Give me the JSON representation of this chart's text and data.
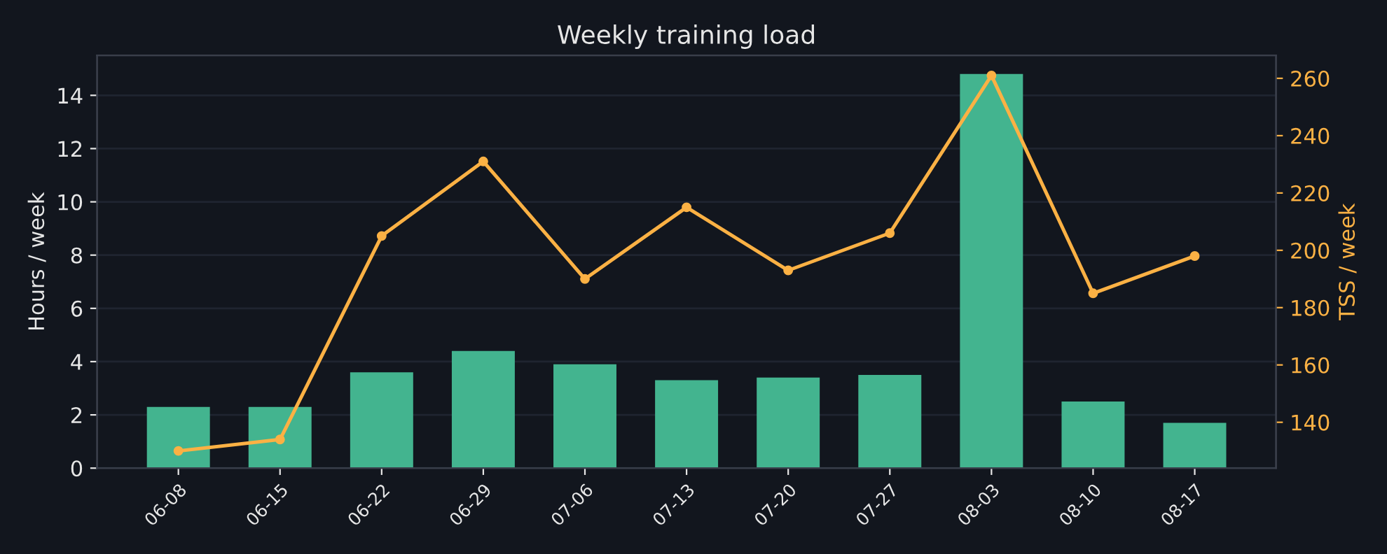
{
  "chart_data": {
    "type": "bar",
    "title": "Weekly training load",
    "ylabel": "Hours / week",
    "y2label": "TSS / week",
    "categories": [
      "06-08",
      "06-15",
      "06-22",
      "06-29",
      "07-06",
      "07-13",
      "07-20",
      "07-27",
      "08-03",
      "08-10",
      "08-17"
    ],
    "series": [
      {
        "color": "#43b48f",
        "values": [
          2.3,
          2.3,
          3.6,
          4.4,
          3.9,
          3.3,
          3.4,
          3.5,
          14.8,
          2.5,
          1.7
        ]
      },
      {
        "type": "line",
        "axis": "y2",
        "color": "#fbb144",
        "marker": "circle",
        "values": [
          130,
          134,
          205,
          231,
          190,
          215,
          193,
          206,
          261,
          185,
          198
        ]
      }
    ],
    "ylim": [
      0,
      15.5
    ],
    "yticks": [
      0,
      2,
      4,
      6,
      8,
      10,
      12,
      14
    ],
    "y2lim": [
      124,
      268
    ],
    "y2ticks": [
      140,
      160,
      180,
      200,
      220,
      240,
      260
    ],
    "grid": "y"
  }
}
